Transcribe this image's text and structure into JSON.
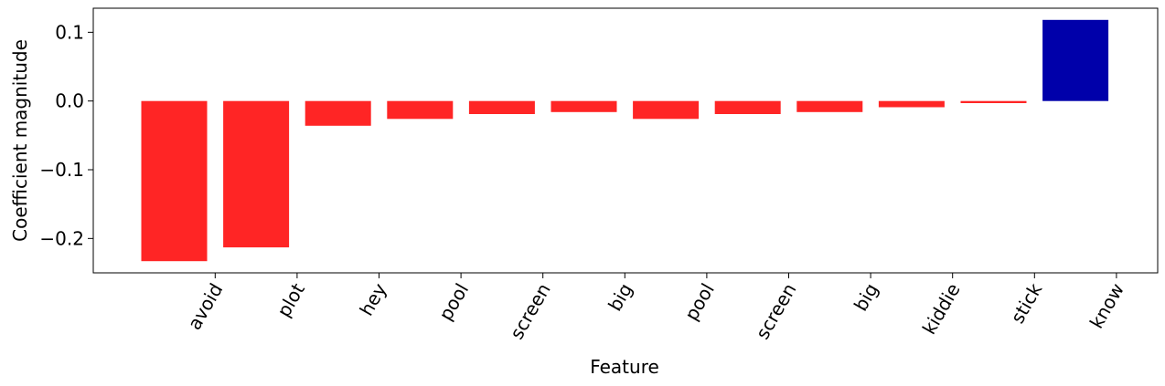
{
  "chart_data": {
    "type": "bar",
    "title": "",
    "xlabel": "Feature",
    "ylabel": "Coefficient magnitude",
    "ylim": [
      -0.25,
      0.135
    ],
    "yticks": [
      0.1,
      0.0,
      -0.1,
      -0.2
    ],
    "ytick_labels": [
      "0.1",
      "0.0",
      "−0.1",
      "−0.2"
    ],
    "categories": [
      "avoid",
      "plot",
      "hey",
      "pool",
      "screen",
      "big",
      "pool",
      "screen",
      "big",
      "kiddie",
      "stick",
      "know"
    ],
    "values": [
      -0.233,
      -0.213,
      -0.036,
      -0.026,
      -0.019,
      -0.016,
      -0.026,
      -0.019,
      -0.016,
      -0.009,
      -0.003,
      0.118
    ],
    "colors": {
      "negative": "#ff2525",
      "positive": "#0000aa"
    },
    "grid": false,
    "legend": "none"
  }
}
